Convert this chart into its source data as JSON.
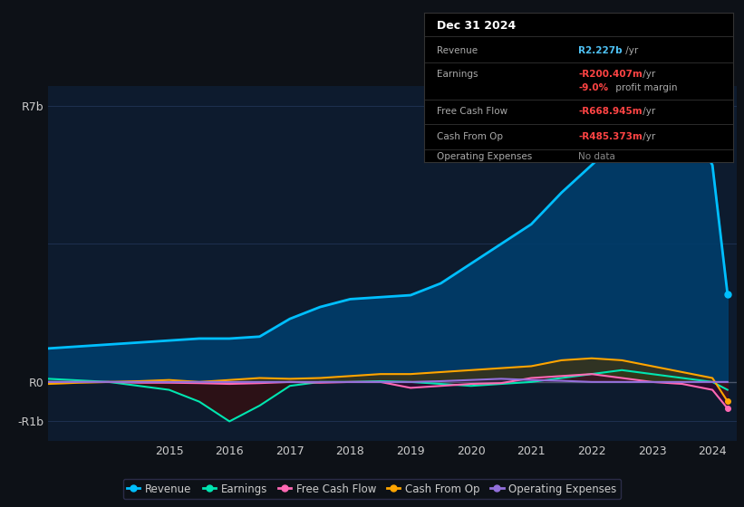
{
  "bg_color": "#0d1117",
  "plot_bg_color": "#0d1b2e",
  "grid_color": "#1e3050",
  "zero_line_color": "#4a5568",
  "years": [
    2013,
    2013.5,
    2014,
    2014.5,
    2015,
    2015.5,
    2016,
    2016.5,
    2017,
    2017.5,
    2018,
    2018.5,
    2019,
    2019.5,
    2020,
    2020.5,
    2021,
    2021.5,
    2022,
    2022.5,
    2023,
    2023.5,
    2024,
    2024.25
  ],
  "revenue": [
    0.85,
    0.9,
    0.95,
    1.0,
    1.05,
    1.1,
    1.1,
    1.15,
    1.6,
    1.9,
    2.1,
    2.15,
    2.2,
    2.5,
    3.0,
    3.5,
    4.0,
    4.8,
    5.5,
    6.2,
    6.8,
    6.9,
    5.5,
    2.23
  ],
  "earnings": [
    0.08,
    0.04,
    0.0,
    -0.1,
    -0.2,
    -0.5,
    -1.0,
    -0.6,
    -0.1,
    0.0,
    0.0,
    0.02,
    0.0,
    -0.05,
    -0.1,
    -0.05,
    0.0,
    0.1,
    0.2,
    0.3,
    0.2,
    0.1,
    0.0,
    -0.2
  ],
  "free_cash_flow": [
    0.0,
    0.0,
    0.0,
    -0.02,
    -0.02,
    -0.03,
    -0.05,
    -0.03,
    0.0,
    -0.02,
    0.0,
    0.0,
    -0.15,
    -0.1,
    -0.05,
    -0.03,
    0.1,
    0.15,
    0.2,
    0.1,
    0.0,
    -0.05,
    -0.2,
    -0.67
  ],
  "cash_from_op": [
    -0.05,
    -0.02,
    0.0,
    0.02,
    0.05,
    0.0,
    0.05,
    0.1,
    0.08,
    0.1,
    0.15,
    0.2,
    0.2,
    0.25,
    0.3,
    0.35,
    0.4,
    0.55,
    0.6,
    0.55,
    0.4,
    0.25,
    0.1,
    -0.49
  ],
  "operating_expenses": [
    0.0,
    0.0,
    0.0,
    0.0,
    0.0,
    0.0,
    0.0,
    0.0,
    0.0,
    0.0,
    0.0,
    0.0,
    0.0,
    0.02,
    0.05,
    0.08,
    0.05,
    0.03,
    0.0,
    0.0,
    0.0,
    0.0,
    0.0,
    0.0
  ],
  "revenue_color": "#00bfff",
  "earnings_color": "#00e5b0",
  "free_cash_flow_color": "#ff69b4",
  "cash_from_op_color": "#ffa500",
  "operating_expenses_color": "#9370db",
  "revenue_fill": "#003d6b",
  "earnings_fill_pos": "#004d40",
  "earnings_fill_neg": "#3a0d0d",
  "cashop_fill": "#4a3000",
  "fcf_fill": "#3d0030",
  "opex_fill": "#2a1a4a",
  "ylim": [
    -1.5,
    7.5
  ],
  "xlim": [
    2013.0,
    2024.4
  ],
  "yticks": [
    -1.0,
    0.0,
    7.0
  ],
  "ytick_labels": [
    "-R1b",
    "R0",
    "R7b"
  ],
  "xtick_years": [
    2015,
    2016,
    2017,
    2018,
    2019,
    2020,
    2021,
    2022,
    2023,
    2024
  ],
  "info_box": {
    "date": "Dec 31 2024",
    "revenue_label": "Revenue",
    "revenue_value": "R2.227b",
    "revenue_unit": " /yr",
    "revenue_color": "#4fc3f7",
    "earnings_label": "Earnings",
    "earnings_value": "-R200.407m",
    "earnings_unit": " /yr",
    "earnings_color": "#ff4444",
    "margin_value": "-9.0%",
    "margin_text": " profit margin",
    "margin_color": "#ff4444",
    "fcf_label": "Free Cash Flow",
    "fcf_value": "-R668.945m",
    "fcf_unit": " /yr",
    "fcf_color": "#ff4444",
    "cashop_label": "Cash From Op",
    "cashop_value": "-R485.373m",
    "cashop_unit": " /yr",
    "cashop_color": "#ff4444",
    "opex_label": "Operating Expenses",
    "opex_value": "No data",
    "opex_value_color": "#888888",
    "label_color": "#aaaaaa",
    "bg_color": "#000000",
    "border_color": "#333333",
    "title_color": "#ffffff",
    "divider_color": "#333333"
  },
  "legend": [
    {
      "label": "Revenue",
      "color": "#00bfff"
    },
    {
      "label": "Earnings",
      "color": "#00e5b0"
    },
    {
      "label": "Free Cash Flow",
      "color": "#ff69b4"
    },
    {
      "label": "Cash From Op",
      "color": "#ffa500"
    },
    {
      "label": "Operating Expenses",
      "color": "#9370db"
    }
  ],
  "legend_bg": "#0d1117",
  "legend_border": "#333355",
  "text_color": "#cccccc"
}
